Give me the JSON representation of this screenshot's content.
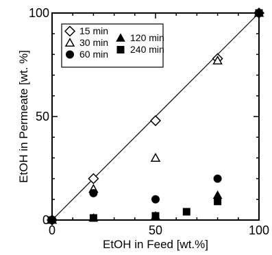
{
  "chart_data": {
    "type": "scatter",
    "xlabel": "EtOH in Feed [wt.%]",
    "ylabel": "EtOH in Permeate [wt. %]",
    "xlim": [
      0,
      100
    ],
    "ylim": [
      0,
      100
    ],
    "x_ticks": [
      "0",
      "50",
      "100"
    ],
    "y_ticks": [
      "0",
      "50",
      "100"
    ],
    "grid": false,
    "legend_position": "top-left",
    "reference_line": {
      "x": [
        0,
        100
      ],
      "y": [
        0,
        100
      ]
    },
    "series": [
      {
        "name": "15 min",
        "marker": "diamond-open",
        "x": [
          0,
          20,
          50,
          80,
          100
        ],
        "y": [
          0,
          20,
          48,
          78,
          100
        ]
      },
      {
        "name": "30 min",
        "marker": "triangle-open",
        "x": [
          0,
          20,
          50,
          80,
          100
        ],
        "y": [
          0,
          15,
          30,
          77,
          100
        ]
      },
      {
        "name": "60 min",
        "marker": "circle-filled",
        "x": [
          0,
          20,
          50,
          80,
          100
        ],
        "y": [
          0,
          13,
          10,
          20,
          100
        ]
      },
      {
        "name": "120 min",
        "marker": "triangle-filled",
        "x": [
          0,
          20,
          50,
          80,
          100
        ],
        "y": [
          0,
          1,
          2,
          12,
          100
        ]
      },
      {
        "name": "240 min",
        "marker": "square-filled",
        "x": [
          0,
          20,
          50,
          65,
          80,
          100
        ],
        "y": [
          0,
          1,
          2,
          4,
          9,
          100
        ]
      }
    ]
  }
}
